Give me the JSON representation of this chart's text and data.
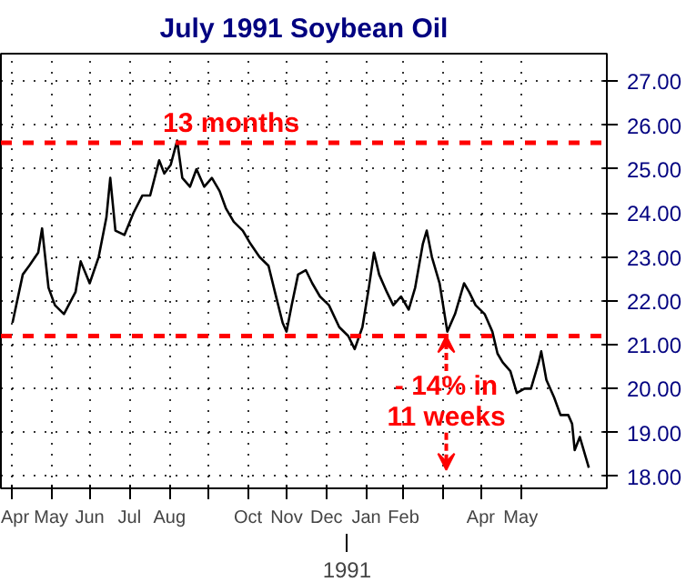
{
  "chart_data": {
    "type": "line",
    "title": "July 1991 Soybean Oil",
    "x": [
      "1990-04-16",
      "1990-04-24",
      "1990-04-29",
      "1990-05-06",
      "1990-05-09",
      "1990-05-14",
      "1990-05-19",
      "1990-05-26",
      "1990-06-04",
      "1990-06-08",
      "1990-06-15",
      "1990-06-22",
      "1990-06-28",
      "1990-07-01",
      "1990-07-05",
      "1990-07-12",
      "1990-07-19",
      "1990-07-26",
      "1990-08-01",
      "1990-08-08",
      "1990-08-12",
      "1990-08-17",
      "1990-08-22",
      "1990-08-26",
      "1990-09-01",
      "1990-09-06",
      "1990-09-12",
      "1990-09-18",
      "1990-09-24",
      "1990-09-29",
      "1990-10-05",
      "1990-10-12",
      "1990-10-18",
      "1990-10-25",
      "1990-11-01",
      "1990-11-06",
      "1990-11-12",
      "1990-11-15",
      "1990-11-19",
      "1990-11-24",
      "1990-11-30",
      "1990-12-05",
      "1990-12-11",
      "1990-12-18",
      "1990-12-26",
      "1991-01-02",
      "1991-01-07",
      "1991-01-13",
      "1991-01-18",
      "1991-01-22",
      "1991-01-26",
      "1991-02-01",
      "1991-02-06",
      "1991-02-12",
      "1991-02-18",
      "1991-02-23",
      "1991-03-01",
      "1991-03-04",
      "1991-03-08",
      "1991-03-14",
      "1991-03-20",
      "1991-03-26",
      "1991-04-02",
      "1991-04-06",
      "1991-04-11",
      "1991-04-18",
      "1991-04-24",
      "1991-04-28",
      "1991-05-02",
      "1991-05-08",
      "1991-05-13",
      "1991-05-19",
      "1991-05-24",
      "1991-05-30",
      "1991-06-01",
      "1991-06-05",
      "1991-06-11",
      "1991-06-16",
      "1991-06-22",
      "1991-06-25",
      "1991-06-27",
      "1991-07-01",
      "1991-07-05",
      "1991-07-08"
    ],
    "series": [
      {
        "color": "#000000",
        "values": [
          21.5,
          22.6,
          22.8,
          23.1,
          23.65,
          22.3,
          21.9,
          21.7,
          22.2,
          22.9,
          22.4,
          23.0,
          23.9,
          24.8,
          23.6,
          23.5,
          24.0,
          24.4,
          24.4,
          25.2,
          24.9,
          25.1,
          25.65,
          24.8,
          24.6,
          25.0,
          24.6,
          24.8,
          24.5,
          24.1,
          23.8,
          23.6,
          23.3,
          23.0,
          22.8,
          22.2,
          21.5,
          21.3,
          21.9,
          22.6,
          22.7,
          22.4,
          22.1,
          21.9,
          21.4,
          21.2,
          20.9,
          21.4,
          22.3,
          23.1,
          22.6,
          22.2,
          21.9,
          22.1,
          21.8,
          22.3,
          23.3,
          23.6,
          23.0,
          22.4,
          21.3,
          21.7,
          22.4,
          22.2,
          21.9,
          21.7,
          21.3,
          20.8,
          20.6,
          20.4,
          19.9,
          20.0,
          20.0,
          20.6,
          20.85,
          20.2,
          19.8,
          19.4,
          19.4,
          19.2,
          18.6,
          18.9,
          18.5,
          18.2
        ]
      }
    ],
    "xlim": [
      "1990-04-07",
      "1991-07-22"
    ],
    "xticks": [
      {
        "value": "1990-04-16",
        "label": "Apr"
      },
      {
        "value": "1990-05-16",
        "label": "May"
      },
      {
        "value": "1990-06-15",
        "label": "Jun"
      },
      {
        "value": "1990-07-16",
        "label": "Jul"
      },
      {
        "value": "1990-08-16",
        "label": "Aug"
      },
      {
        "value": "1990-09-15",
        "label": null
      },
      {
        "value": "1990-10-16",
        "label": "Oct"
      },
      {
        "value": "1990-11-15",
        "label": "Nov"
      },
      {
        "value": "1990-12-16",
        "label": "Dec"
      },
      {
        "value": "1991-01-16",
        "label": "Jan"
      },
      {
        "value": "1991-02-14",
        "label": "Feb"
      },
      {
        "value": "1991-03-16",
        "label": null
      },
      {
        "value": "1991-04-15",
        "label": "Apr"
      },
      {
        "value": "1991-05-16",
        "label": "May"
      }
    ],
    "ylim": [
      17.73,
      27.63
    ],
    "yticks": [
      {
        "value": 18,
        "label": "18.00"
      },
      {
        "value": 19,
        "label": "19.00"
      },
      {
        "value": 20,
        "label": "20.00"
      },
      {
        "value": 21,
        "label": "21.00"
      },
      {
        "value": 22,
        "label": "22.00"
      },
      {
        "value": 23,
        "label": "23.00"
      },
      {
        "value": 24,
        "label": "24.00"
      },
      {
        "value": 25,
        "label": "25.00"
      },
      {
        "value": 26,
        "label": "26.00"
      },
      {
        "value": 27,
        "label": "27.00"
      }
    ],
    "ref_lines": [
      {
        "axis": "y",
        "value": 25.6,
        "label": "13 months",
        "color": "#ff0000",
        "line_style": "dashed"
      },
      {
        "axis": "y",
        "value": 21.2,
        "label": null,
        "color": "#ff0000",
        "line_style": "dashed"
      }
    ],
    "annotations": [
      {
        "text": "1991",
        "x": "1991-01-01"
      },
      "- 14% in",
      "11 weeks"
    ],
    "grid": true,
    "marker": "none",
    "line_style": "solid"
  }
}
